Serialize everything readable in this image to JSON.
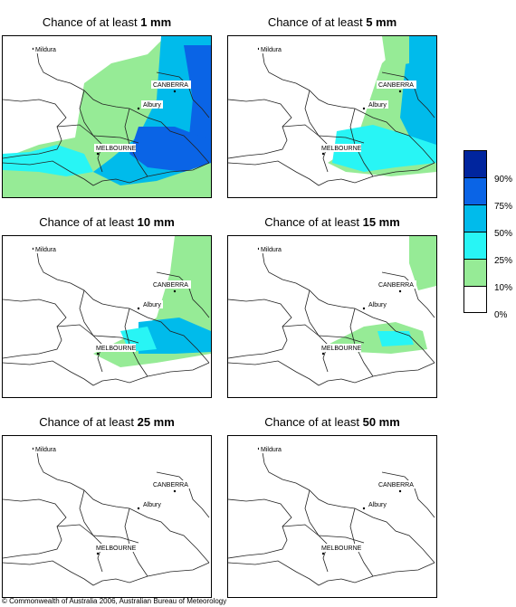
{
  "panels": [
    {
      "prefix": "Chance of at least ",
      "amount": "1 mm",
      "level": 1
    },
    {
      "prefix": "Chance of at least ",
      "amount": "5 mm",
      "level": 2
    },
    {
      "prefix": "Chance of at least ",
      "amount": "10 mm",
      "level": 3
    },
    {
      "prefix": "Chance of at least ",
      "amount": "15 mm",
      "level": 4
    },
    {
      "prefix": "Chance of at least ",
      "amount": "25 mm",
      "level": 5
    },
    {
      "prefix": "Chance of at least ",
      "amount": "50 mm",
      "level": 6
    }
  ],
  "cities": {
    "mildura": "Mildura",
    "canberra": "CANBERRA",
    "albury": "Albury",
    "melbourne": "MELBOURNE"
  },
  "legend": {
    "labels": [
      "90%",
      "75%",
      "50%",
      "25%",
      "10%",
      "0%"
    ],
    "colors": [
      "#00259e",
      "#0a64e6",
      "#00bbeb",
      "#28f5f5",
      "#96eb96",
      "#ffffff"
    ]
  },
  "copyright": "© Commonwealth of Australia 2006, Australian Bureau of Meteorology"
}
